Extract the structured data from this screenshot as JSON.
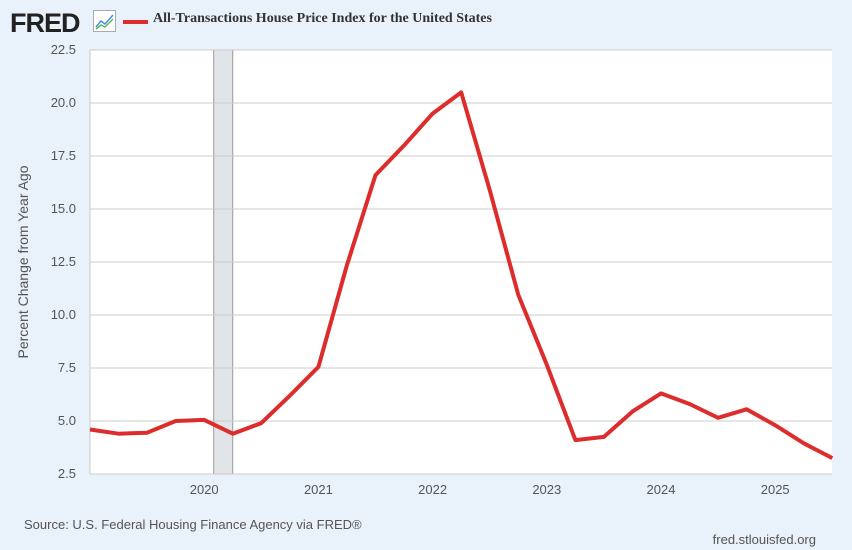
{
  "logo": "FRED",
  "chart_data": {
    "type": "line",
    "title": "All-Transactions House Price Index for the United States",
    "ylabel": "Percent Change from Year Ago",
    "xlabel": "",
    "ylim": [
      2.5,
      22.5
    ],
    "yticks": [
      "2.5",
      "5.0",
      "7.5",
      "10.0",
      "12.5",
      "15.0",
      "17.5",
      "20.0",
      "22.5"
    ],
    "xticks": [
      "2020",
      "2021",
      "2022",
      "2023",
      "2024",
      "2025"
    ],
    "grid": true,
    "legend": "top-left",
    "recession": [
      "2020-02",
      "2020-04"
    ],
    "series": [
      {
        "name": "All-Transactions House Price Index for the United States",
        "color": "#dd2c2c",
        "x": [
          "2019-01",
          "2019-04",
          "2019-07",
          "2019-10",
          "2020-01",
          "2020-04",
          "2020-07",
          "2020-10",
          "2021-01",
          "2021-04",
          "2021-07",
          "2021-10",
          "2022-01",
          "2022-04",
          "2022-07",
          "2022-10",
          "2023-01",
          "2023-04",
          "2023-07",
          "2023-10",
          "2024-01",
          "2024-04",
          "2024-07",
          "2024-10",
          "2025-01",
          "2025-04",
          "2025-07"
        ],
        "values": [
          4.6,
          4.4,
          4.45,
          5.0,
          5.05,
          4.4,
          4.9,
          6.2,
          7.55,
          12.35,
          16.6,
          18.0,
          19.5,
          20.5,
          15.9,
          10.95,
          7.65,
          4.1,
          4.25,
          5.45,
          6.3,
          5.8,
          5.15,
          5.55,
          4.8,
          3.95,
          3.25
        ]
      }
    ]
  },
  "footer": {
    "source": "Source: U.S. Federal Housing Finance Agency via FRED®",
    "url": "fred.stlouisfed.org"
  }
}
